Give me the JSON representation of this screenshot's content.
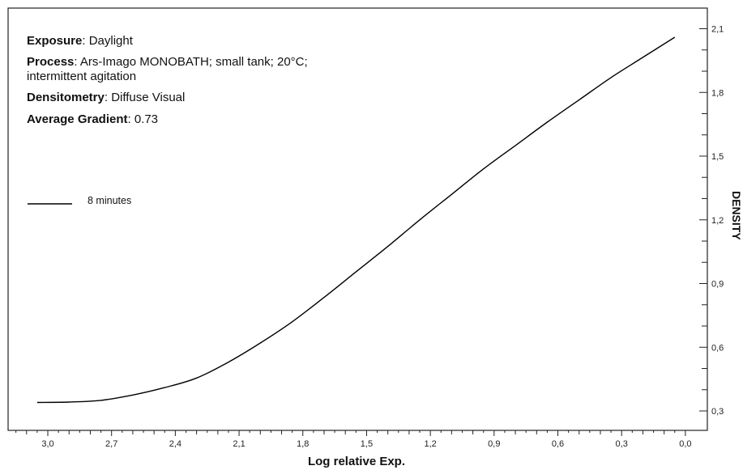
{
  "info": {
    "exposure_label": "Exposure",
    "exposure_value": ": Daylight",
    "process_label": "Process",
    "process_value": ": Ars-Imago MONOBATH; small tank; 20°C;",
    "process_value_line2": "intermittent agitation",
    "densitometry_label": "Densitometry",
    "densitometry_value": ": Diffuse Visual",
    "gradient_label": "Average Gradient",
    "gradient_value": ": 0.73"
  },
  "chart_data": {
    "type": "line",
    "xlabel": "Log relative Exp.",
    "ylabel": "DENSITY",
    "xlim": [
      3.15,
      -0.05
    ],
    "ylim": [
      0.2,
      2.2
    ],
    "x_ticks": [
      "3,0",
      "2,7",
      "2,4",
      "2,1",
      "1,8",
      "1,5",
      "1,2",
      "0,9",
      "0,6",
      "0,3",
      "0,0"
    ],
    "y_ticks": [
      "2,1",
      "1,8",
      "1,5",
      "1,2",
      "0,9",
      "0,6",
      "0,3"
    ],
    "grid": false,
    "legend_position": "top-left",
    "series": [
      {
        "name": "8 minutes",
        "color": "#000000",
        "x": [
          3.05,
          2.9,
          2.75,
          2.6,
          2.45,
          2.3,
          2.15,
          2.0,
          1.85,
          1.7,
          1.55,
          1.4,
          1.25,
          1.1,
          0.95,
          0.8,
          0.65,
          0.5,
          0.35,
          0.2,
          0.05
        ],
        "y": [
          0.34,
          0.342,
          0.35,
          0.375,
          0.41,
          0.455,
          0.53,
          0.62,
          0.72,
          0.835,
          0.955,
          1.075,
          1.2,
          1.32,
          1.44,
          1.55,
          1.66,
          1.765,
          1.87,
          1.965,
          2.06
        ]
      }
    ]
  }
}
